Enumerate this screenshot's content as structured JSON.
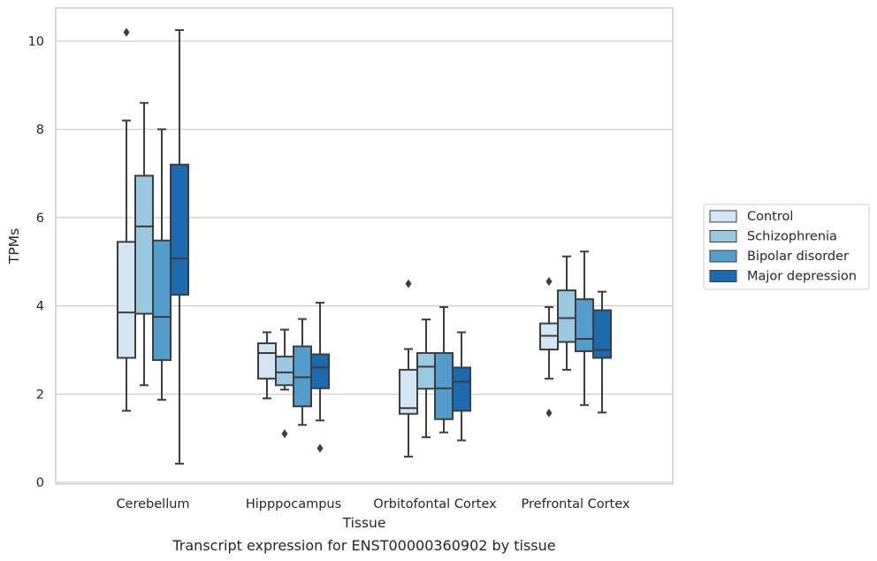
{
  "chart_data": {
    "type": "box",
    "title": "",
    "caption": "Transcript expression for ENST00000360902 by tissue",
    "xlabel": "Tissue",
    "ylabel": "TPMs",
    "ylim": [
      -0.05,
      10.75
    ],
    "yticks": [
      0,
      2,
      4,
      6,
      8,
      10
    ],
    "grid": "horizontal",
    "legend_position": "right",
    "categories": [
      "Cerebellum",
      "Hipppocampus",
      "Orbitofontal Cortex",
      "Prefrontal Cortex"
    ],
    "series": [
      {
        "name": "Control",
        "color": "#d3e4f3",
        "boxes": [
          {
            "whislo": 1.62,
            "q1": 2.82,
            "med": 3.85,
            "q3": 5.45,
            "whishi": 8.2,
            "fliers": [
              10.2
            ]
          },
          {
            "whislo": 1.9,
            "q1": 2.35,
            "med": 2.93,
            "q3": 3.15,
            "whishi": 3.4,
            "fliers": []
          },
          {
            "whislo": 0.58,
            "q1": 1.55,
            "med": 1.68,
            "q3": 2.55,
            "whishi": 3.02,
            "fliers": [
              4.5
            ]
          },
          {
            "whislo": 2.35,
            "q1": 3.01,
            "med": 3.32,
            "q3": 3.6,
            "whishi": 3.97,
            "fliers": [
              4.55,
              1.57
            ]
          }
        ]
      },
      {
        "name": "Schizophrenia",
        "color": "#9ac8e0",
        "boxes": [
          {
            "whislo": 2.2,
            "q1": 3.82,
            "med": 5.8,
            "q3": 6.95,
            "whishi": 8.6,
            "fliers": []
          },
          {
            "whislo": 2.1,
            "q1": 2.2,
            "med": 2.49,
            "q3": 2.85,
            "whishi": 3.46,
            "fliers": [
              1.1
            ]
          },
          {
            "whislo": 1.02,
            "q1": 2.12,
            "med": 2.62,
            "q3": 2.93,
            "whishi": 3.69,
            "fliers": []
          },
          {
            "whislo": 2.55,
            "q1": 3.18,
            "med": 3.72,
            "q3": 4.35,
            "whishi": 5.12,
            "fliers": []
          }
        ]
      },
      {
        "name": "Bipolar disorder",
        "color": "#529dcc",
        "boxes": [
          {
            "whislo": 1.87,
            "q1": 2.77,
            "med": 3.75,
            "q3": 5.48,
            "whishi": 8.0,
            "fliers": []
          },
          {
            "whislo": 1.3,
            "q1": 1.72,
            "med": 2.38,
            "q3": 3.08,
            "whishi": 3.7,
            "fliers": []
          },
          {
            "whislo": 1.13,
            "q1": 1.43,
            "med": 2.13,
            "q3": 2.93,
            "whishi": 3.97,
            "fliers": []
          },
          {
            "whislo": 1.75,
            "q1": 2.97,
            "med": 3.25,
            "q3": 4.15,
            "whishi": 5.23,
            "fliers": []
          }
        ]
      },
      {
        "name": "Major depression",
        "color": "#1c6aaf",
        "boxes": [
          {
            "whislo": 0.42,
            "q1": 4.25,
            "med": 5.07,
            "q3": 7.2,
            "whishi": 10.25,
            "fliers": []
          },
          {
            "whislo": 1.4,
            "q1": 2.13,
            "med": 2.6,
            "q3": 2.9,
            "whishi": 4.07,
            "fliers": [
              0.77
            ]
          },
          {
            "whislo": 0.95,
            "q1": 1.62,
            "med": 2.28,
            "q3": 2.6,
            "whishi": 3.4,
            "fliers": []
          },
          {
            "whislo": 1.58,
            "q1": 2.82,
            "med": 3.0,
            "q3": 3.9,
            "whishi": 4.32,
            "fliers": []
          }
        ]
      }
    ]
  }
}
